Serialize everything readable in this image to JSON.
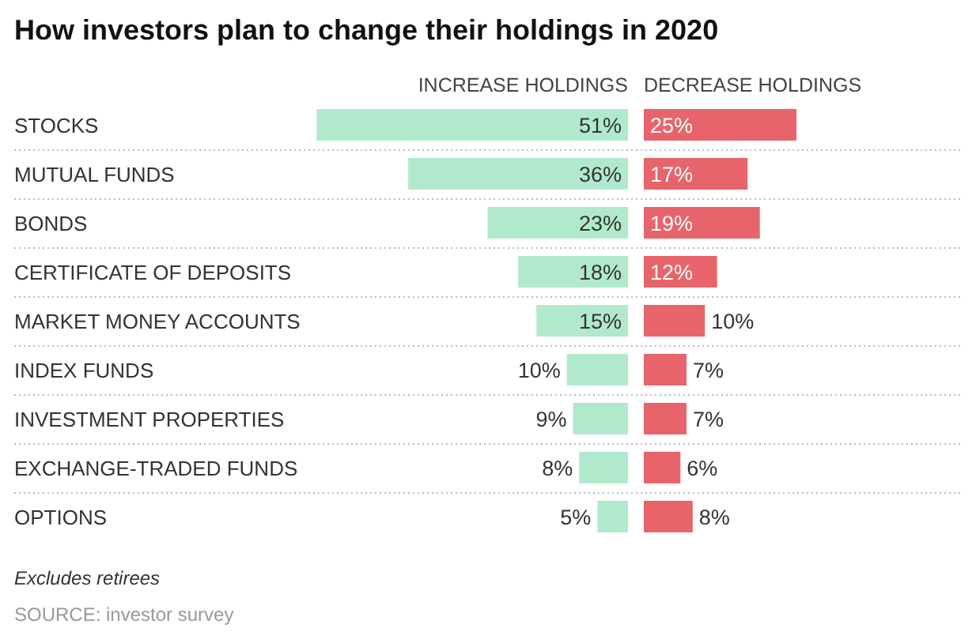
{
  "chart_data": [
    {
      "type": "bar",
      "orientation": "horizontal",
      "title": "How investors plan to change their holdings in 2020",
      "categories": [
        "STOCKS",
        "MUTUAL FUNDS",
        "BONDS",
        "CERTIFICATE OF DEPOSITS",
        "MARKET MONEY ACCOUNTS",
        "INDEX FUNDS",
        "INVESTMENT PROPERTIES",
        "EXCHANGE-TRADED FUNDS",
        "OPTIONS"
      ],
      "series": [
        {
          "name": "INCREASE HOLDINGS",
          "color": "#b1e9cd",
          "values": [
            51,
            36,
            23,
            18,
            15,
            10,
            9,
            8,
            5
          ],
          "value_labels": [
            "51%",
            "36%",
            "23%",
            "18%",
            "15%",
            "10%",
            "9%",
            "8%",
            "5%"
          ]
        }
      ],
      "legend": "top",
      "grid": "y"
    },
    {
      "type": "bar",
      "orientation": "horizontal",
      "categories": [
        null,
        null,
        null,
        null,
        null,
        null,
        null,
        null,
        null
      ],
      "series": [
        {
          "name": "DECREASE HOLDINGS",
          "color": "#e8646b",
          "values": [
            25,
            17,
            19,
            12,
            10,
            7,
            7,
            6,
            8
          ],
          "value_labels": [
            "25%",
            "17%",
            "19%",
            "12%",
            "10%",
            "7%",
            "7%",
            "6%",
            "8%"
          ]
        }
      ],
      "legend": "top",
      "grid": "y",
      "annotations": [
        "Excludes retirees",
        "SOURCE: investor survey"
      ]
    }
  ]
}
